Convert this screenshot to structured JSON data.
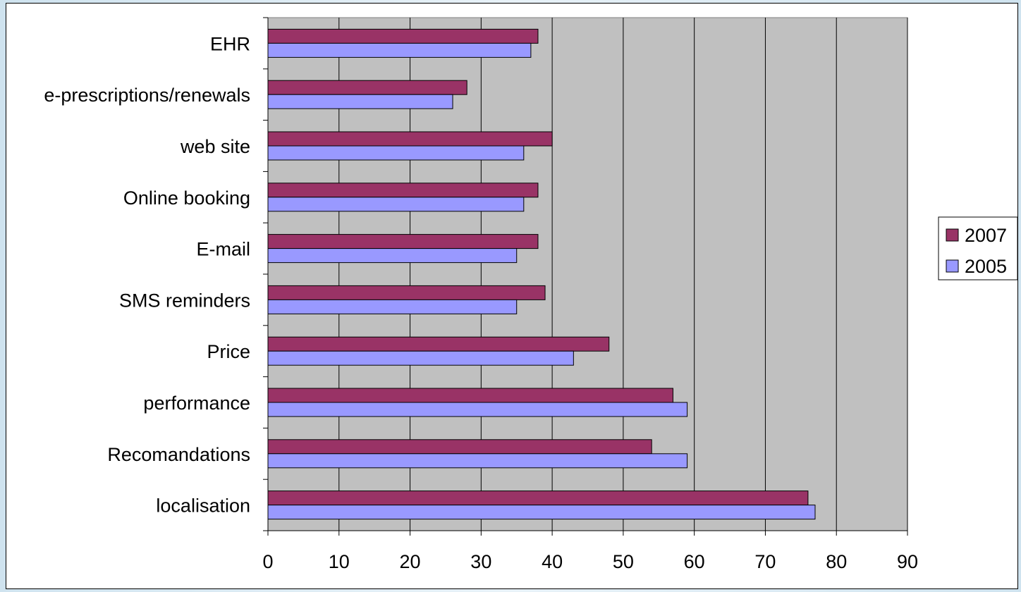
{
  "chart_data": {
    "type": "bar",
    "orientation": "horizontal",
    "categories": [
      "EHR",
      "e-prescriptions/renewals",
      "web site",
      "Online booking",
      "E-mail",
      "SMS reminders",
      "Price",
      "performance",
      "Recomandations",
      "localisation"
    ],
    "series": [
      {
        "name": "2007",
        "color": "#993366",
        "values": [
          38,
          28,
          40,
          38,
          38,
          39,
          48,
          57,
          54,
          76
        ]
      },
      {
        "name": "2005",
        "color": "#9999ff",
        "values": [
          37,
          26,
          36,
          36,
          35,
          35,
          43,
          59,
          59,
          77
        ]
      }
    ],
    "xlim": [
      0,
      90
    ],
    "xticks": [
      "0",
      "10",
      "20",
      "30",
      "40",
      "50",
      "60",
      "70",
      "80",
      "90"
    ],
    "grid": "vertical",
    "plot_background": "#c0c0c0",
    "legend": "right"
  }
}
